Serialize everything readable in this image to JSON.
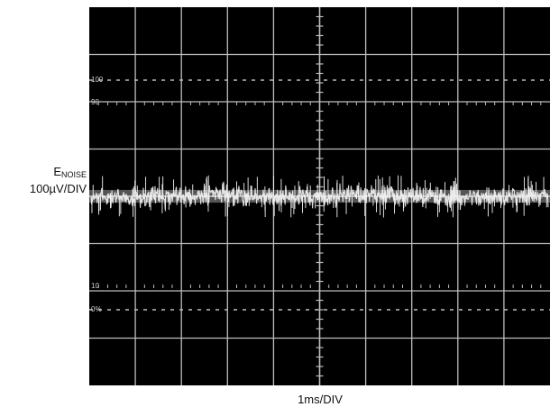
{
  "chart_data": {
    "type": "line",
    "title": "",
    "ylabel_main": "E",
    "ylabel_sub": "NOISE",
    "yscale": "100µV/DIV",
    "xlabel": "1ms/DIV",
    "divisions": {
      "x": 10,
      "y": 8
    },
    "grid": true,
    "series": [
      {
        "description": "noise trace centered on screen",
        "center_div": 4.0,
        "amplitude_div_pp": 0.6
      }
    ],
    "screen_markings": [
      {
        "text": "100",
        "row": "upper"
      },
      {
        "text": "90",
        "row": "upper"
      },
      {
        "text": "10",
        "row": "lower"
      },
      {
        "text": "0%",
        "row": "lower"
      }
    ]
  },
  "colors": {
    "screen": "#000000",
    "grid": "#bdbdbd",
    "trace": "#f2f2f2",
    "text": "#111111"
  }
}
